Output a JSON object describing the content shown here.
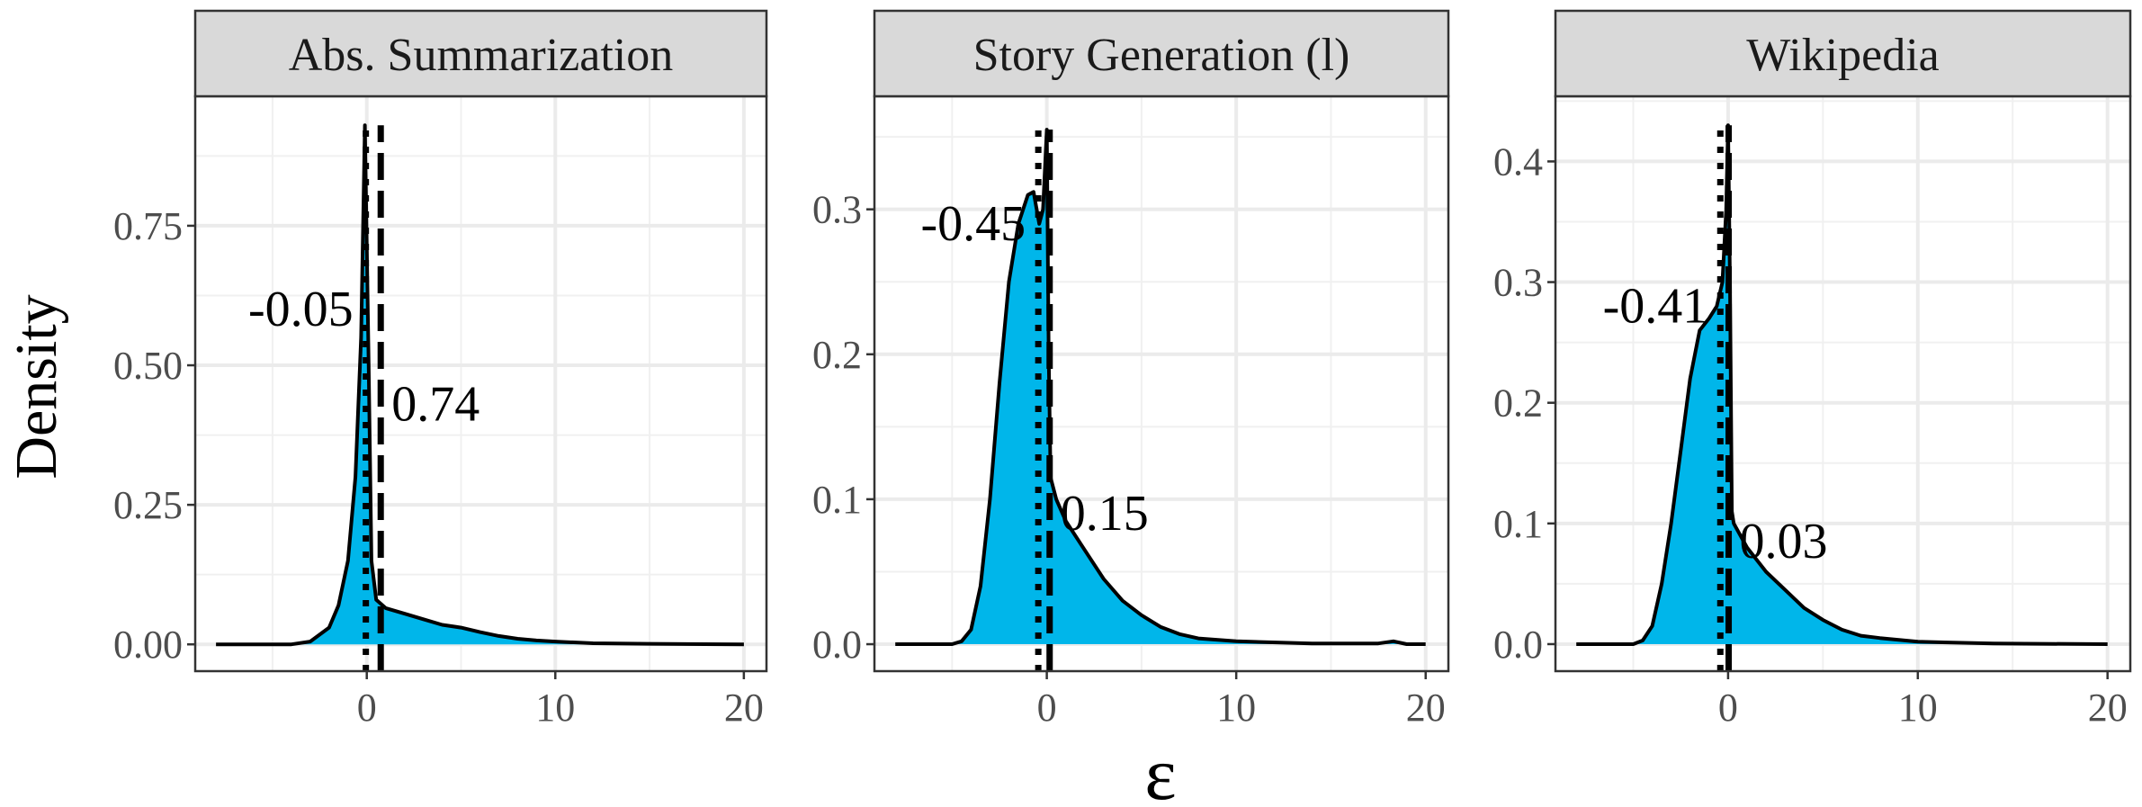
{
  "chart_data": {
    "type": "area",
    "ylabel": "Density",
    "xlabel": "ε",
    "fill_color": "#00b6ea",
    "grid": true,
    "xlim": [
      -9.1,
      21.2
    ],
    "x_ticks": [
      0,
      10,
      20
    ],
    "x_tick_labels": [
      "0",
      "10",
      "20"
    ],
    "panels": [
      {
        "title": "Abs. Summarization",
        "ylim": [
          -0.048,
          0.982
        ],
        "y_ticks": [
          0,
          0.25,
          0.5,
          0.75
        ],
        "y_tick_labels": [
          "0.00",
          "0.25",
          "0.50",
          "0.75"
        ],
        "dotted_line": {
          "x": -0.05,
          "label": "-0.05",
          "label_y": 0.6
        },
        "dashed_line": {
          "x": 0.74,
          "label": "0.74",
          "label_y": 0.43
        },
        "density": [
          [
            -8,
            0
          ],
          [
            -4,
            0
          ],
          [
            -3,
            0.005
          ],
          [
            -2,
            0.03
          ],
          [
            -1.5,
            0.07
          ],
          [
            -1,
            0.15
          ],
          [
            -0.6,
            0.3
          ],
          [
            -0.3,
            0.55
          ],
          [
            -0.1,
            0.93
          ],
          [
            0.1,
            0.5
          ],
          [
            0.25,
            0.15
          ],
          [
            0.5,
            0.08
          ],
          [
            1,
            0.065
          ],
          [
            2,
            0.055
          ],
          [
            3,
            0.045
          ],
          [
            4,
            0.035
          ],
          [
            5,
            0.03
          ],
          [
            6,
            0.022
          ],
          [
            7,
            0.015
          ],
          [
            8,
            0.01
          ],
          [
            9,
            0.007
          ],
          [
            10,
            0.005
          ],
          [
            12,
            0.002
          ],
          [
            15,
            0.001
          ],
          [
            20,
            0
          ]
        ]
      },
      {
        "title": "Story Generation (l)",
        "ylim": [
          -0.0186,
          0.378
        ],
        "y_ticks": [
          0,
          0.1,
          0.2,
          0.3
        ],
        "y_tick_labels": [
          "0.0",
          "0.1",
          "0.2",
          "0.3"
        ],
        "dotted_line": {
          "x": -0.45,
          "label": "-0.45",
          "label_y": 0.29
        },
        "dashed_line": {
          "x": 0.15,
          "label": "0.15",
          "label_y": 0.09
        },
        "density": [
          [
            -8,
            0
          ],
          [
            -5,
            0
          ],
          [
            -4.5,
            0.002
          ],
          [
            -4,
            0.01
          ],
          [
            -3.5,
            0.04
          ],
          [
            -3,
            0.1
          ],
          [
            -2.5,
            0.18
          ],
          [
            -2,
            0.25
          ],
          [
            -1.5,
            0.29
          ],
          [
            -1,
            0.31
          ],
          [
            -0.7,
            0.312
          ],
          [
            -0.4,
            0.29
          ],
          [
            -0.2,
            0.3
          ],
          [
            0,
            0.355
          ],
          [
            0.1,
            0.2
          ],
          [
            0.2,
            0.115
          ],
          [
            0.5,
            0.1
          ],
          [
            1,
            0.085
          ],
          [
            2,
            0.065
          ],
          [
            3,
            0.045
          ],
          [
            4,
            0.03
          ],
          [
            5,
            0.02
          ],
          [
            6,
            0.012
          ],
          [
            7,
            0.007
          ],
          [
            8,
            0.004
          ],
          [
            10,
            0.002
          ],
          [
            14,
            0.0005
          ],
          [
            17.5,
            0.0005
          ],
          [
            18.3,
            0.002
          ],
          [
            19,
            0
          ],
          [
            20,
            0
          ]
        ]
      },
      {
        "title": "Wikipedia",
        "ylim": [
          -0.0224,
          0.454
        ],
        "y_ticks": [
          0,
          0.1,
          0.2,
          0.3,
          0.4
        ],
        "y_tick_labels": [
          "0.0",
          "0.1",
          "0.2",
          "0.3",
          "0.4"
        ],
        "dotted_line": {
          "x": -0.41,
          "label": "-0.41",
          "label_y": 0.28
        },
        "dashed_line": {
          "x": 0.03,
          "label": "0.03",
          "label_y": 0.085
        },
        "density": [
          [
            -8,
            0
          ],
          [
            -5,
            0
          ],
          [
            -4.5,
            0.003
          ],
          [
            -4,
            0.015
          ],
          [
            -3.5,
            0.05
          ],
          [
            -3,
            0.1
          ],
          [
            -2.5,
            0.16
          ],
          [
            -2,
            0.22
          ],
          [
            -1.5,
            0.26
          ],
          [
            -1,
            0.27
          ],
          [
            -0.6,
            0.28
          ],
          [
            -0.3,
            0.3
          ],
          [
            -0.1,
            0.36
          ],
          [
            0,
            0.43
          ],
          [
            0.1,
            0.3
          ],
          [
            0.2,
            0.11
          ],
          [
            0.3,
            0.1
          ],
          [
            1,
            0.08
          ],
          [
            2,
            0.06
          ],
          [
            3,
            0.045
          ],
          [
            4,
            0.03
          ],
          [
            5,
            0.02
          ],
          [
            6,
            0.012
          ],
          [
            7,
            0.007
          ],
          [
            8,
            0.005
          ],
          [
            10,
            0.002
          ],
          [
            14,
            0.0005
          ],
          [
            20,
            0
          ]
        ]
      }
    ]
  }
}
